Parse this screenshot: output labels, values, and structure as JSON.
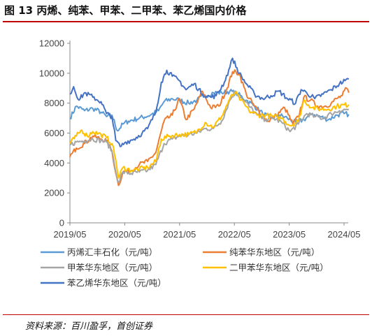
{
  "header": {
    "title": "图 13 丙烯、纯苯、甲苯、二甲苯、苯乙烯国内价格"
  },
  "footer": {
    "source": "资料来源：百川盈孚，首创证券"
  },
  "chart_data": {
    "type": "line",
    "title": "",
    "xlabel": "",
    "ylabel": "",
    "x_ticks": [
      "2019/05",
      "2020/05",
      "2021/05",
      "2022/05",
      "2023/05",
      "2024/05"
    ],
    "x_range": [
      2019.333,
      2024.333
    ],
    "y_ticks": [
      0,
      2000,
      4000,
      6000,
      8000,
      10000,
      12000
    ],
    "ylim": [
      0,
      12000
    ],
    "grid": false,
    "legend_position": "bottom",
    "series": [
      {
        "name": "丙烯汇丰石化（元/吨）",
        "color": "#5b9bd5",
        "points": [
          [
            2019.333,
            7000
          ],
          [
            2019.45,
            7800
          ],
          [
            2019.6,
            7500
          ],
          [
            2019.75,
            7650
          ],
          [
            2019.9,
            7400
          ],
          [
            2020.0,
            7100
          ],
          [
            2020.1,
            7200
          ],
          [
            2020.2,
            6150
          ],
          [
            2020.3,
            6600
          ],
          [
            2020.4,
            6800
          ],
          [
            2020.6,
            7000
          ],
          [
            2020.8,
            7200
          ],
          [
            2020.95,
            7500
          ],
          [
            2021.05,
            8100
          ],
          [
            2021.2,
            8300
          ],
          [
            2021.33,
            8200
          ],
          [
            2021.5,
            8000
          ],
          [
            2021.65,
            8200
          ],
          [
            2021.8,
            8500
          ],
          [
            2021.95,
            8700
          ],
          [
            2022.1,
            8700
          ],
          [
            2022.25,
            8800
          ],
          [
            2022.4,
            8600
          ],
          [
            2022.55,
            8200
          ],
          [
            2022.7,
            7800
          ],
          [
            2022.85,
            7300
          ],
          [
            2023.0,
            7000
          ],
          [
            2023.15,
            7200
          ],
          [
            2023.3,
            7000
          ],
          [
            2023.45,
            6700
          ],
          [
            2023.6,
            6900
          ],
          [
            2023.75,
            7300
          ],
          [
            2023.9,
            7100
          ],
          [
            2024.05,
            6900
          ],
          [
            2024.2,
            7200
          ],
          [
            2024.333,
            7300
          ],
          [
            2024.42,
            7250
          ]
        ]
      },
      {
        "name": "纯苯华东地区（元/吨）",
        "color": "#ed7d31",
        "points": [
          [
            2019.333,
            4400
          ],
          [
            2019.45,
            5000
          ],
          [
            2019.6,
            5300
          ],
          [
            2019.75,
            5800
          ],
          [
            2019.9,
            5600
          ],
          [
            2020.0,
            5500
          ],
          [
            2020.1,
            4800
          ],
          [
            2020.17,
            3300
          ],
          [
            2020.22,
            2500
          ],
          [
            2020.3,
            3400
          ],
          [
            2020.45,
            3500
          ],
          [
            2020.6,
            3900
          ],
          [
            2020.75,
            4100
          ],
          [
            2020.9,
            4700
          ],
          [
            2021.05,
            6800
          ],
          [
            2021.2,
            7200
          ],
          [
            2021.33,
            8300
          ],
          [
            2021.45,
            6900
          ],
          [
            2021.6,
            7600
          ],
          [
            2021.75,
            8800
          ],
          [
            2021.9,
            7700
          ],
          [
            2022.05,
            7800
          ],
          [
            2022.2,
            9000
          ],
          [
            2022.3,
            10100
          ],
          [
            2022.42,
            10000
          ],
          [
            2022.55,
            8600
          ],
          [
            2022.7,
            7800
          ],
          [
            2022.85,
            7100
          ],
          [
            2022.95,
            6800
          ],
          [
            2023.1,
            7200
          ],
          [
            2023.25,
            7700
          ],
          [
            2023.4,
            6600
          ],
          [
            2023.5,
            7100
          ],
          [
            2023.6,
            8400
          ],
          [
            2023.72,
            8200
          ],
          [
            2023.85,
            7800
          ],
          [
            2024.0,
            7800
          ],
          [
            2024.1,
            8000
          ],
          [
            2024.2,
            8300
          ],
          [
            2024.3,
            8500
          ],
          [
            2024.38,
            9000
          ],
          [
            2024.42,
            8700
          ]
        ]
      },
      {
        "name": "甲苯华东地区（元/吨）",
        "color": "#a5a5a5",
        "points": [
          [
            2019.333,
            5200
          ],
          [
            2019.45,
            5400
          ],
          [
            2019.6,
            5500
          ],
          [
            2019.75,
            5600
          ],
          [
            2019.9,
            5500
          ],
          [
            2020.0,
            5400
          ],
          [
            2020.1,
            4800
          ],
          [
            2020.17,
            3400
          ],
          [
            2020.22,
            2700
          ],
          [
            2020.3,
            3400
          ],
          [
            2020.45,
            3300
          ],
          [
            2020.6,
            3400
          ],
          [
            2020.75,
            3500
          ],
          [
            2020.9,
            3900
          ],
          [
            2021.05,
            5300
          ],
          [
            2021.2,
            5600
          ],
          [
            2021.33,
            5800
          ],
          [
            2021.5,
            5900
          ],
          [
            2021.65,
            6000
          ],
          [
            2021.8,
            6300
          ],
          [
            2021.95,
            6300
          ],
          [
            2022.1,
            6800
          ],
          [
            2022.25,
            8200
          ],
          [
            2022.35,
            8800
          ],
          [
            2022.45,
            8400
          ],
          [
            2022.6,
            7800
          ],
          [
            2022.75,
            7200
          ],
          [
            2022.9,
            6900
          ],
          [
            2023.05,
            7000
          ],
          [
            2023.2,
            6700
          ],
          [
            2023.35,
            6100
          ],
          [
            2023.5,
            6600
          ],
          [
            2023.65,
            7300
          ],
          [
            2023.8,
            7100
          ],
          [
            2023.95,
            7000
          ],
          [
            2024.1,
            7300
          ],
          [
            2024.25,
            7500
          ],
          [
            2024.42,
            7600
          ]
        ]
      },
      {
        "name": "二甲苯华东地区（元/吨）",
        "color": "#ffc000",
        "points": [
          [
            2019.333,
            5300
          ],
          [
            2019.45,
            5800
          ],
          [
            2019.55,
            6200
          ],
          [
            2019.65,
            5800
          ],
          [
            2019.75,
            6100
          ],
          [
            2019.9,
            5900
          ],
          [
            2020.0,
            5700
          ],
          [
            2020.1,
            5300
          ],
          [
            2020.17,
            4200
          ],
          [
            2020.22,
            3000
          ],
          [
            2020.3,
            3700
          ],
          [
            2020.45,
            3500
          ],
          [
            2020.6,
            3600
          ],
          [
            2020.75,
            3700
          ],
          [
            2020.9,
            4100
          ],
          [
            2021.0,
            5600
          ],
          [
            2021.15,
            5800
          ],
          [
            2021.33,
            5900
          ],
          [
            2021.5,
            5900
          ],
          [
            2021.65,
            6100
          ],
          [
            2021.8,
            6700
          ],
          [
            2021.95,
            6400
          ],
          [
            2022.1,
            7100
          ],
          [
            2022.25,
            8300
          ],
          [
            2022.35,
            8700
          ],
          [
            2022.45,
            8200
          ],
          [
            2022.6,
            7500
          ],
          [
            2022.75,
            7200
          ],
          [
            2022.9,
            7200
          ],
          [
            2023.05,
            7100
          ],
          [
            2023.2,
            7000
          ],
          [
            2023.35,
            6500
          ],
          [
            2023.5,
            6800
          ],
          [
            2023.6,
            8200
          ],
          [
            2023.75,
            7700
          ],
          [
            2023.9,
            7600
          ],
          [
            2024.05,
            7600
          ],
          [
            2024.2,
            7800
          ],
          [
            2024.42,
            7900
          ]
        ]
      },
      {
        "name": "苯乙烯华东地区（元/吨）",
        "color": "#4472c4",
        "points": [
          [
            2019.333,
            8600
          ],
          [
            2019.4,
            9100
          ],
          [
            2019.5,
            8200
          ],
          [
            2019.6,
            8700
          ],
          [
            2019.75,
            8400
          ],
          [
            2019.9,
            8100
          ],
          [
            2020.0,
            7300
          ],
          [
            2020.1,
            7100
          ],
          [
            2020.17,
            5500
          ],
          [
            2020.25,
            5100
          ],
          [
            2020.35,
            5400
          ],
          [
            2020.5,
            5600
          ],
          [
            2020.65,
            6000
          ],
          [
            2020.75,
            6300
          ],
          [
            2020.9,
            7400
          ],
          [
            2021.0,
            9400
          ],
          [
            2021.1,
            10200
          ],
          [
            2021.2,
            9800
          ],
          [
            2021.33,
            9500
          ],
          [
            2021.45,
            8900
          ],
          [
            2021.6,
            9300
          ],
          [
            2021.75,
            8600
          ],
          [
            2021.9,
            8400
          ],
          [
            2022.0,
            8500
          ],
          [
            2022.15,
            9400
          ],
          [
            2022.25,
            10400
          ],
          [
            2022.3,
            11000
          ],
          [
            2022.42,
            10000
          ],
          [
            2022.55,
            9300
          ],
          [
            2022.7,
            8600
          ],
          [
            2022.85,
            8300
          ],
          [
            2023.0,
            8500
          ],
          [
            2023.15,
            8800
          ],
          [
            2023.3,
            8300
          ],
          [
            2023.45,
            8000
          ],
          [
            2023.55,
            8900
          ],
          [
            2023.65,
            8700
          ],
          [
            2023.8,
            8300
          ],
          [
            2023.95,
            8600
          ],
          [
            2024.1,
            8900
          ],
          [
            2024.25,
            9300
          ],
          [
            2024.35,
            9500
          ],
          [
            2024.42,
            9600
          ]
        ]
      }
    ]
  }
}
